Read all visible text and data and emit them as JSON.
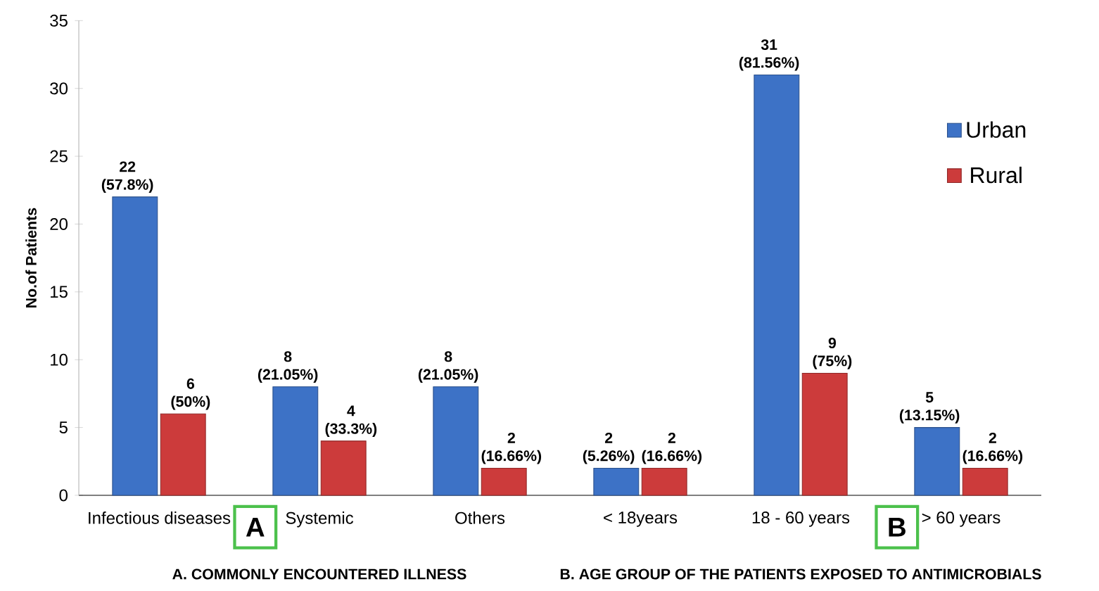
{
  "chart_data": {
    "type": "bar",
    "categories": [
      "Infectious diseases",
      "Systemic",
      "Others",
      "< 18years",
      "18 - 60 years",
      "> 60 years"
    ],
    "series": [
      {
        "name": "Urban",
        "color": "#3d72c6",
        "values": [
          22,
          8,
          8,
          2,
          31,
          5
        ],
        "value_labels": [
          "22 (57.8%)",
          "8 (21.05%)",
          "8 (21.05%)",
          "2 (5.26%)",
          "31 (81.56%)",
          "5 (13.15%)"
        ]
      },
      {
        "name": "Rural",
        "color": "#cc3b3b",
        "values": [
          6,
          4,
          2,
          2,
          9,
          2
        ],
        "value_labels": [
          "6 (50%)",
          "4 (33.3%)",
          "2 (16.66%)",
          "2 (16.66%)",
          "9 (75%)",
          "2 (16.66%)"
        ]
      }
    ],
    "ylabel": "No.of Patients",
    "ylim": [
      0,
      35
    ],
    "yticks": [
      0,
      5,
      10,
      15,
      20,
      25,
      30,
      35
    ],
    "legend": "right",
    "annotations": [
      "A",
      "B",
      "A. COMMONLY ENCOUNTERED ILLNESS",
      "B. AGE GROUP OF THE PATIENTS EXPOSED TO ANTIMICROBIALS"
    ]
  }
}
